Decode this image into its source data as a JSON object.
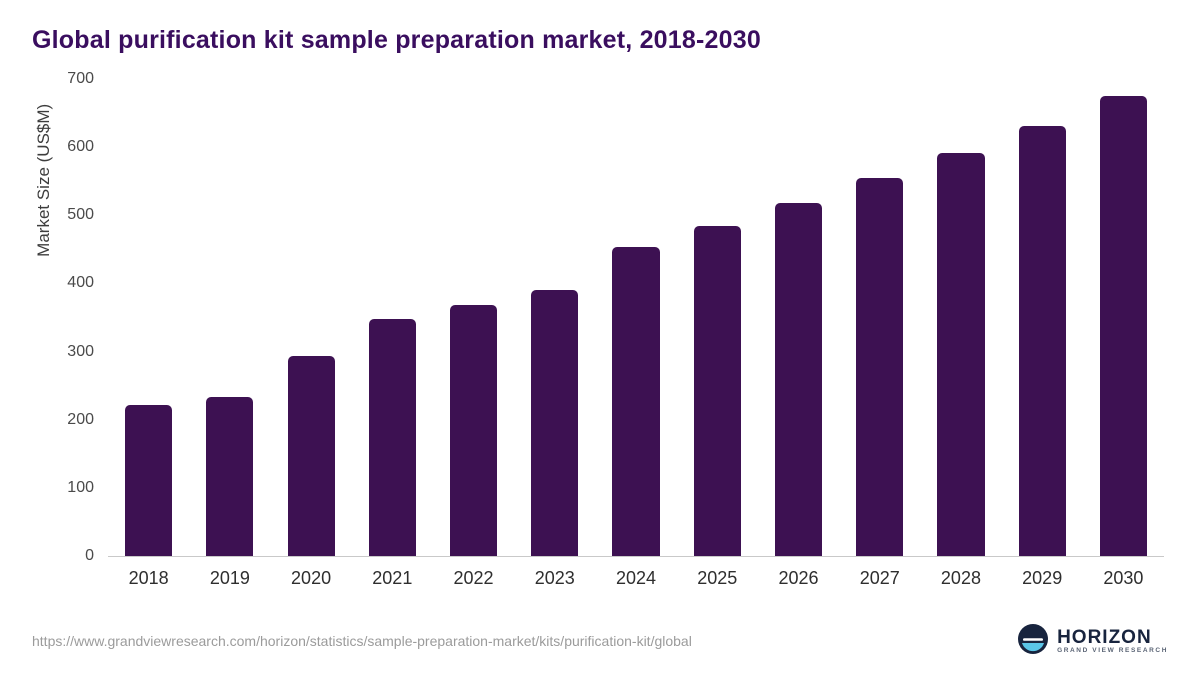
{
  "title": "Global purification kit sample preparation market, 2018-2030",
  "chart_data": {
    "type": "bar",
    "title": "Global purification kit sample preparation market, 2018-2030",
    "xlabel": "",
    "ylabel": "Market Size (US$M)",
    "categories": [
      "2018",
      "2019",
      "2020",
      "2021",
      "2022",
      "2023",
      "2024",
      "2025",
      "2026",
      "2027",
      "2028",
      "2029",
      "2030"
    ],
    "values": [
      222,
      234,
      293,
      348,
      368,
      390,
      453,
      485,
      518,
      555,
      592,
      631,
      675
    ],
    "ylim": [
      0,
      700
    ],
    "ytick_step": 100,
    "grid": false,
    "legend": "none",
    "bar_color": "#3d1152"
  },
  "footer": {
    "source_url": "https://www.grandviewresearch.com/horizon/statistics/sample-preparation-market/kits/purification-kit/global",
    "brand_name": "HORIZON",
    "brand_sub": "GRAND VIEW RESEARCH"
  },
  "colors": {
    "title": "#3a0e5f",
    "bar": "#3d1152",
    "axis_text": "#4a4a4a",
    "brand_navy": "#18243e",
    "brand_teal": "#5bc6e8"
  }
}
